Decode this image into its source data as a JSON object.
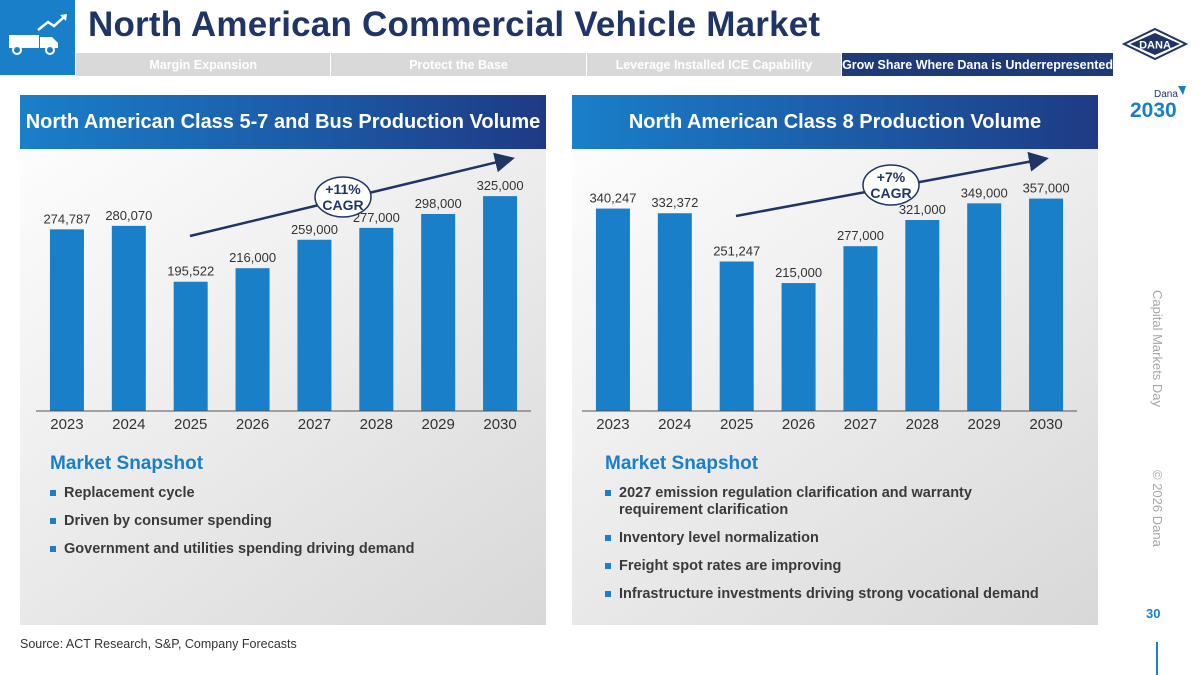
{
  "title": "North American Commercial Vehicle Market",
  "nav": {
    "tabs": [
      {
        "label": "Margin Expansion",
        "active": false
      },
      {
        "label": "Protect the Base",
        "active": false
      },
      {
        "label": "Leverage Installed ICE Capability",
        "active": false
      },
      {
        "label": "Grow Share Where Dana is Underrepresented",
        "active": true
      }
    ]
  },
  "brand": {
    "logo_text": "DANA",
    "sub_brand": "Dana",
    "year": "2030"
  },
  "colors": {
    "primary": "#1a7fc9",
    "navy": "#1f3566",
    "bar": "#1a7fc9"
  },
  "panels": [
    {
      "header": "North American Class 5-7 and Bus Production Volume",
      "snapshot_title": "Market Snapshot",
      "bullets": [
        "Replacement cycle",
        "Driven by consumer spending",
        "Government and utilities spending driving demand"
      ]
    },
    {
      "header": "North American Class 8 Production Volume",
      "snapshot_title": "Market Snapshot",
      "bullets": [
        "2027 emission regulation clarification and warranty requirement clarification",
        "Inventory level normalization",
        "Freight spot rates are improving",
        "Infrastructure investments driving strong vocational demand"
      ]
    }
  ],
  "chart_data": [
    {
      "type": "bar",
      "title": "North American Class 5-7 and Bus Production Volume",
      "categories": [
        "2023",
        "2024",
        "2025",
        "2026",
        "2027",
        "2028",
        "2029",
        "2030"
      ],
      "values": [
        274787,
        280070,
        195522,
        216000,
        259000,
        277000,
        298000,
        325000
      ],
      "labels": [
        "274,787",
        "280,070",
        "195,522",
        "216,000",
        "259,000",
        "277,000",
        "298,000",
        "325,000"
      ],
      "annotation": {
        "line1": "+11%",
        "line2": "CAGR"
      },
      "xlabel": "",
      "ylabel": "",
      "ylim": [
        0,
        360000
      ]
    },
    {
      "type": "bar",
      "title": "North American Class 8 Production Volume",
      "categories": [
        "2023",
        "2024",
        "2025",
        "2026",
        "2027",
        "2028",
        "2029",
        "2030"
      ],
      "values": [
        340247,
        332372,
        251247,
        215000,
        277000,
        321000,
        349000,
        357000
      ],
      "labels": [
        "340,247",
        "332,372",
        "251,247",
        "215,000",
        "277,000",
        "321,000",
        "349,000",
        "357,000"
      ],
      "annotation": {
        "line1": "+7%",
        "line2": "CAGR"
      },
      "xlabel": "",
      "ylabel": "",
      "ylim": [
        0,
        400000
      ]
    }
  ],
  "footer": {
    "source": "Source: ACT Research, S&P, Company Forecasts",
    "side_label_1": "Capital Markets Day",
    "side_label_2": "© 2026 Dana",
    "page_number": "30"
  }
}
